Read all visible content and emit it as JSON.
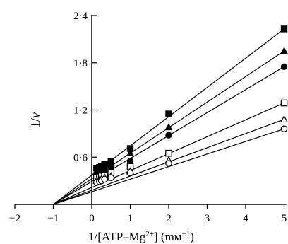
{
  "chart_data": {
    "type": "scatter",
    "xlabel": "1/[ATP–Mg",
    "xlabel_sup": "2+",
    "xlabel_unit": "] (mм",
    "xlabel_unit_sup": "−1",
    "xlabel_end": ")",
    "ylabel_italic": "v",
    "ylabel_prefix": "1/",
    "xlim": [
      -2,
      5
    ],
    "ylim": [
      0,
      2.4
    ],
    "x_ticks": [
      {
        "value": -2,
        "label": "−2"
      },
      {
        "value": -1,
        "label": "−1"
      },
      {
        "value": 0,
        "label": "0"
      },
      {
        "value": 1,
        "label": "1"
      },
      {
        "value": 2,
        "label": "2"
      },
      {
        "value": 3,
        "label": "3"
      },
      {
        "value": 4,
        "label": "4"
      },
      {
        "value": 5,
        "label": "5"
      }
    ],
    "y_ticks": [
      {
        "value": 0.6,
        "label": "0·6"
      },
      {
        "value": 1.2,
        "label": "1·2"
      },
      {
        "value": 1.8,
        "label": "1·8"
      },
      {
        "value": 2.4,
        "label": "2·4"
      }
    ],
    "x_intercept": -1,
    "grid": false,
    "legend": "none",
    "series": [
      {
        "marker": "square-filled",
        "x": [
          0.125,
          0.2,
          0.25,
          0.333,
          0.5,
          1,
          2,
          5
        ],
        "y": [
          0.46,
          0.47,
          0.48,
          0.51,
          0.55,
          0.71,
          1.15,
          2.23
        ]
      },
      {
        "marker": "triangle-filled",
        "x": [
          0.125,
          0.2,
          0.25,
          0.333,
          0.5,
          1,
          2,
          5
        ],
        "y": [
          0.42,
          0.43,
          0.44,
          0.47,
          0.52,
          0.65,
          0.98,
          1.95
        ]
      },
      {
        "marker": "circle-filled",
        "x": [
          0.125,
          0.2,
          0.25,
          0.333,
          0.5,
          1,
          2,
          5
        ],
        "y": [
          0.39,
          0.4,
          0.41,
          0.44,
          0.47,
          0.55,
          0.88,
          1.75
        ]
      },
      {
        "marker": "square-open",
        "x": [
          0.125,
          0.2,
          0.25,
          0.333,
          0.5,
          1,
          2,
          5
        ],
        "y": [
          0.34,
          0.35,
          0.36,
          0.37,
          0.4,
          0.48,
          0.65,
          1.29
        ]
      },
      {
        "marker": "triangle-open",
        "x": [
          0.125,
          0.2,
          0.25,
          0.333,
          0.5,
          1,
          2,
          5
        ],
        "y": [
          0.3,
          0.31,
          0.32,
          0.34,
          0.36,
          0.42,
          0.56,
          1.08
        ]
      },
      {
        "marker": "circle-open",
        "x": [
          0.125,
          0.2,
          0.25,
          0.333,
          0.5,
          1,
          2,
          5
        ],
        "y": [
          0.28,
          0.29,
          0.3,
          0.32,
          0.34,
          0.4,
          0.52,
          0.96
        ]
      }
    ]
  }
}
